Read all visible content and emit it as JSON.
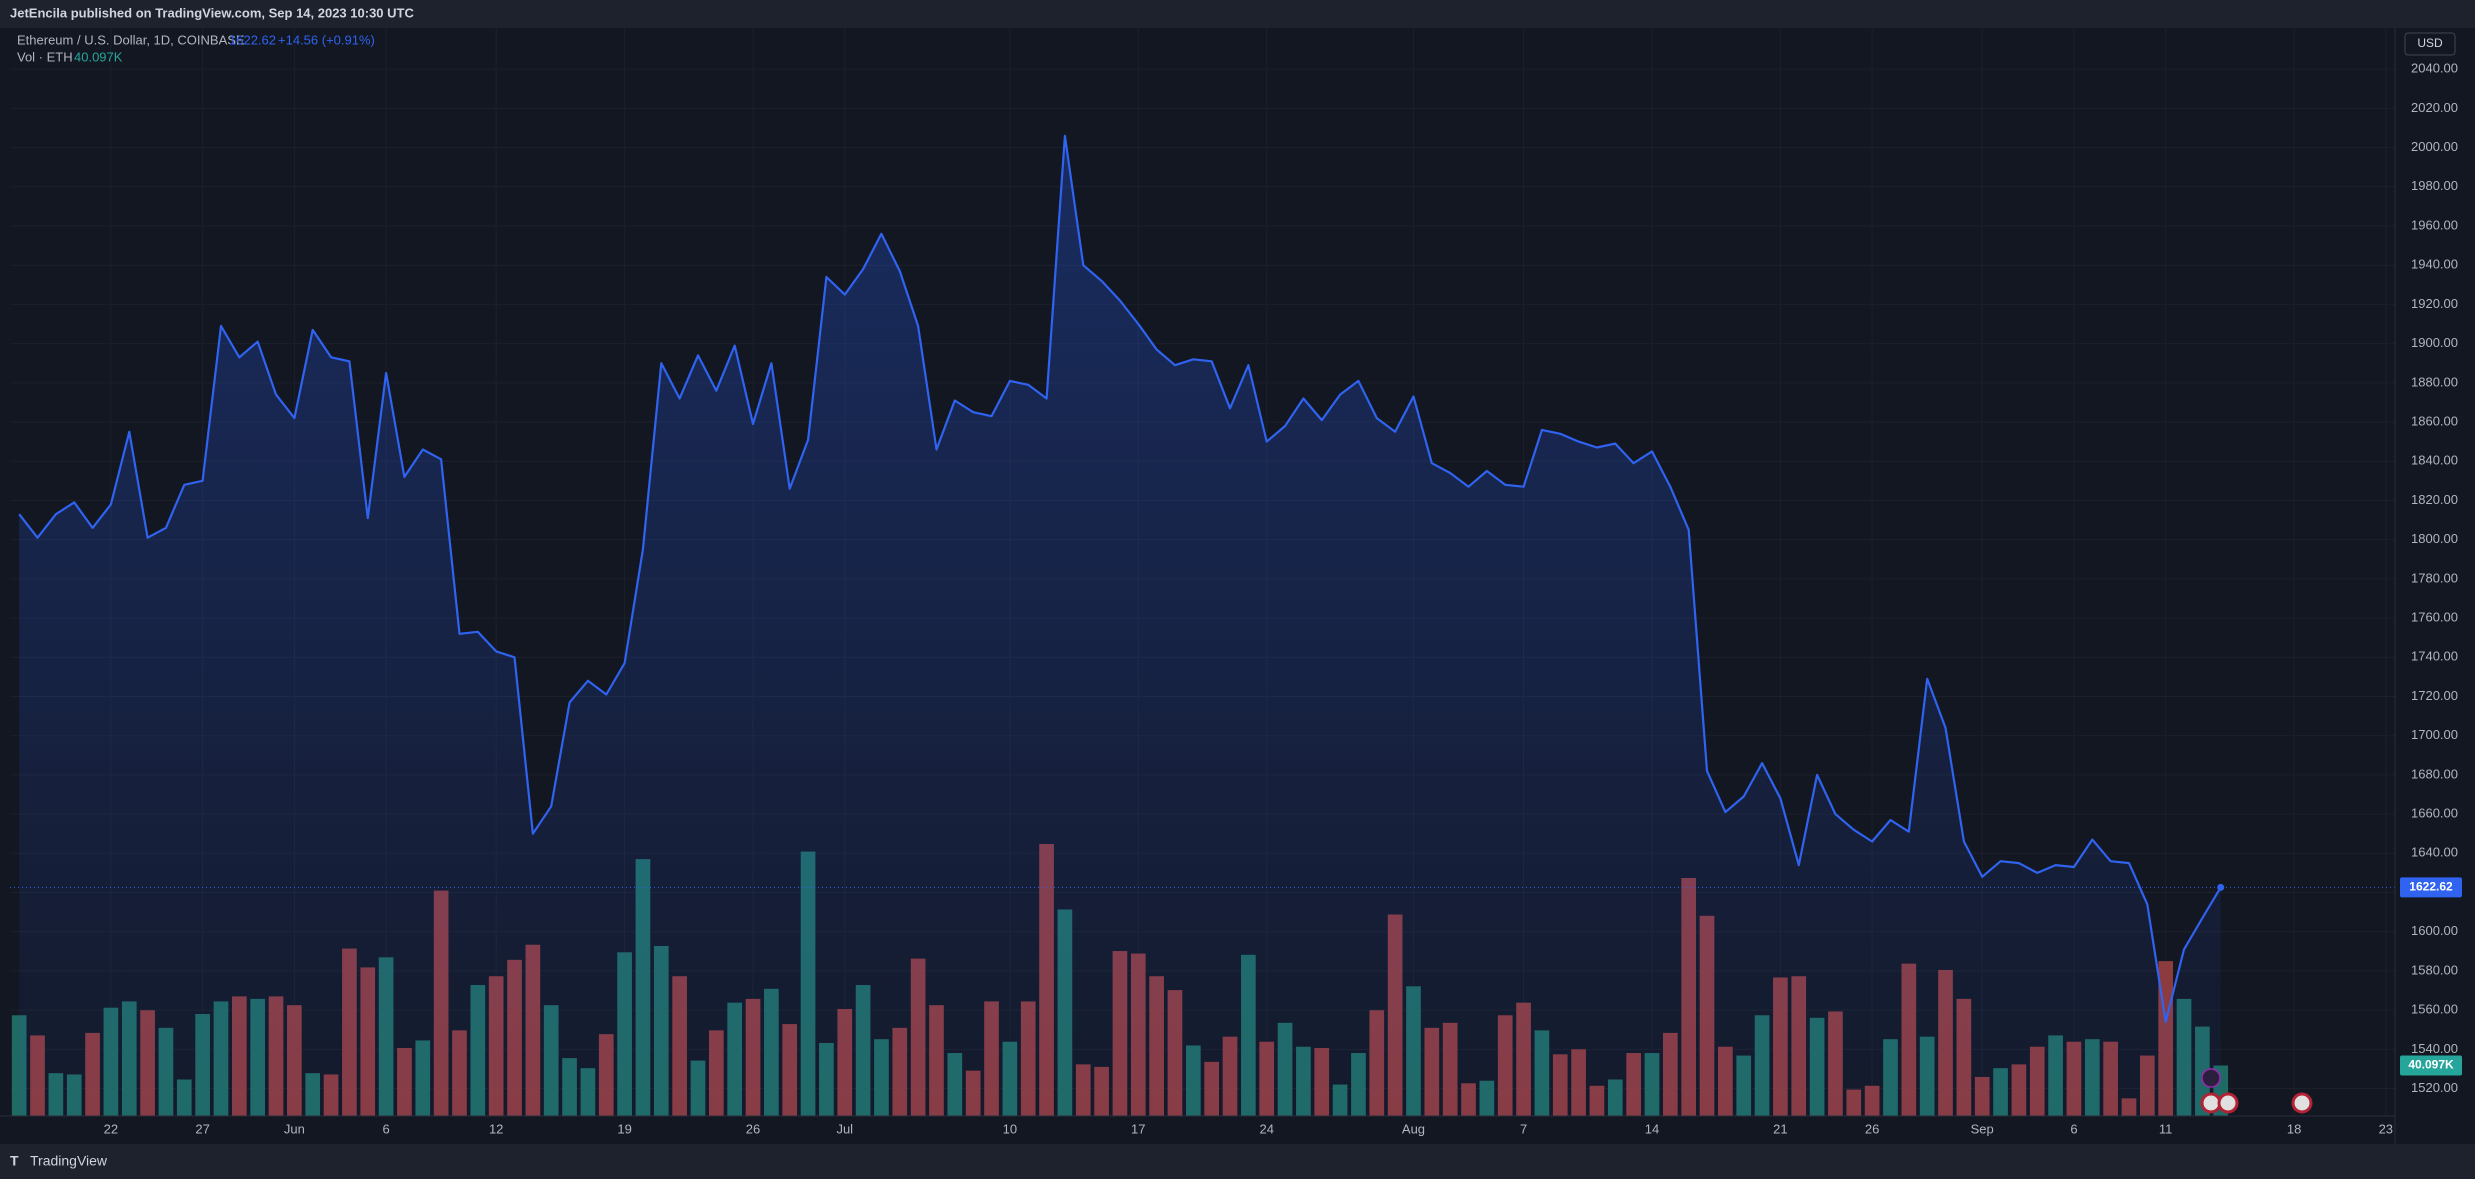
{
  "header": {
    "publisher": "JetEncila published on TradingView.com, Sep 14, 2023 10:30 UTC",
    "brand": "TradingView"
  },
  "chart_data": {
    "type": "area",
    "symbol": "Ethereum / U.S. Dollar, 1D, COINBASE",
    "change_label": "+14.56 (+0.91%)",
    "currency": "USD",
    "grid": true,
    "categories": [
      null,
      null,
      null,
      null,
      null,
      "22",
      null,
      null,
      null,
      null,
      "27",
      null,
      null,
      null,
      null,
      "Jun",
      null,
      null,
      null,
      null,
      "6",
      null,
      null,
      null,
      null,
      null,
      "12",
      null,
      null,
      null,
      null,
      null,
      null,
      "19",
      null,
      null,
      null,
      null,
      null,
      null,
      "26",
      null,
      null,
      null,
      null,
      "Jul",
      null,
      null,
      null,
      null,
      null,
      null,
      null,
      null,
      "10",
      null,
      null,
      null,
      null,
      null,
      null,
      "17",
      null,
      null,
      null,
      null,
      null,
      null,
      "24",
      null,
      null,
      null,
      null,
      null,
      null,
      null,
      "Aug",
      null,
      null,
      null,
      null,
      null,
      "7",
      null,
      null,
      null,
      null,
      null,
      null,
      "14",
      null,
      null,
      null,
      null,
      null,
      null,
      "21",
      null,
      null,
      null,
      null,
      "26",
      null,
      null,
      null,
      null,
      null,
      "Sep",
      null,
      null,
      null,
      null,
      "6",
      null,
      null,
      null,
      null,
      "11",
      null,
      null,
      null,
      null,
      null,
      null,
      "18",
      null,
      null,
      null,
      null,
      "23"
    ],
    "series": [
      {
        "name": "Ethereum / U.S. Dollar, 1D, COINBASE",
        "color": "#2f63f0",
        "values": [
          1813,
          1801,
          1813,
          1819,
          1806,
          1818,
          1855,
          1801,
          1806,
          1828,
          1830,
          1909,
          1893,
          1901,
          1874,
          1862,
          1907,
          1893,
          1891,
          1811,
          1885,
          1832,
          1846,
          1841,
          1752,
          1753,
          1743,
          1740,
          1650,
          1664,
          1717,
          1728,
          1721,
          1737,
          1795,
          1890,
          1872,
          1894,
          1876,
          1899,
          1859,
          1890,
          1826,
          1851,
          1934,
          1925,
          1938,
          1956,
          1937,
          1909,
          1846,
          1871,
          1865,
          1863,
          1881,
          1879,
          1872,
          2006,
          1940,
          1932,
          1922,
          1910,
          1897,
          1889,
          1892,
          1891,
          1867,
          1889,
          1850,
          1858,
          1872,
          1861,
          1874,
          1881,
          1862,
          1855,
          1873,
          1839,
          1834,
          1827,
          1835,
          1828,
          1827,
          1856,
          1854,
          1850,
          1847,
          1849,
          1839,
          1845,
          1827,
          1805,
          1682,
          1661,
          1669,
          1686,
          1668,
          1634,
          1680,
          1660,
          1652,
          1646,
          1657,
          1651,
          1729,
          1704,
          1646,
          1628,
          1636,
          1635,
          1630,
          1634,
          1633,
          1647,
          1636,
          1635,
          1614,
          1554,
          1591,
          1607,
          1622.62,
          null,
          null,
          null,
          null,
          null,
          null,
          null,
          null,
          null
        ]
      },
      {
        "name": "Vol · ETH",
        "up_color": "#1f6b63",
        "down_color": "#8c3b3e",
        "label_color": "#26a69a",
        "values": [
          80,
          64,
          34,
          33,
          66,
          86,
          91,
          84,
          70,
          29,
          81,
          91,
          95,
          93,
          95,
          88,
          34,
          33,
          133,
          118,
          126,
          54,
          60,
          179,
          68,
          104,
          111,
          124,
          136,
          88,
          46,
          38,
          65,
          130,
          204,
          135,
          111,
          44,
          68,
          90,
          93,
          101,
          73,
          210,
          58,
          85,
          104,
          61,
          70,
          125,
          88,
          50,
          36,
          91,
          59,
          91,
          216,
          164,
          41,
          39,
          131,
          129,
          111,
          100,
          56,
          43,
          63,
          128,
          59,
          74,
          55,
          54,
          25,
          50,
          84,
          160,
          103,
          70,
          74,
          26,
          28,
          80,
          90,
          68,
          49,
          53,
          24,
          29,
          50,
          50,
          66,
          189,
          159,
          55,
          48,
          80,
          110,
          111,
          78,
          83,
          21,
          24,
          61,
          121,
          63,
          116,
          93,
          31,
          38,
          41,
          55,
          64,
          59,
          61,
          59,
          14,
          48,
          123,
          93,
          71,
          40.097,
          null,
          null,
          null,
          null,
          null,
          null,
          null,
          null,
          null
        ],
        "value_labels": [
          null,
          null,
          null,
          null,
          null,
          null,
          null,
          null,
          null,
          null,
          null,
          null,
          null,
          null,
          null,
          null,
          null,
          null,
          null,
          null,
          null,
          null,
          null,
          null,
          null,
          null,
          null,
          null,
          null,
          null,
          null,
          null,
          null,
          null,
          null,
          null,
          null,
          null,
          null,
          null,
          null,
          null,
          null,
          null,
          null,
          null,
          null,
          null,
          null,
          null,
          null,
          null,
          null,
          null,
          null,
          null,
          null,
          null,
          null,
          null,
          null,
          null,
          null,
          null,
          null,
          null,
          null,
          null,
          null,
          null,
          null,
          null,
          null,
          null,
          null,
          null,
          null,
          null,
          null,
          null,
          null,
          null,
          null,
          null,
          null,
          null,
          null,
          null,
          null,
          null,
          null,
          null,
          null,
          null,
          null,
          null,
          null,
          null,
          null,
          null,
          null,
          null,
          null,
          null,
          null,
          null,
          null,
          null,
          null,
          null,
          null,
          null,
          null,
          null,
          null,
          null,
          null,
          null,
          null,
          null,
          "40.097K",
          null,
          null,
          null,
          null,
          null,
          null,
          null,
          null,
          null
        ]
      }
    ],
    "ylim": [
      1506,
      2061
    ],
    "yticks": [
      {
        "value": 1520,
        "label": "1520.00"
      },
      {
        "value": 1540,
        "label": "1540.00"
      },
      {
        "value": 1560,
        "label": "1560.00"
      },
      {
        "value": 1580,
        "label": "1580.00"
      },
      {
        "value": 1600,
        "label": "1600.00"
      },
      {
        "value": 1620,
        "label": "1620.00"
      },
      {
        "value": 1640,
        "label": "1640.00"
      },
      {
        "value": 1660,
        "label": "1660.00"
      },
      {
        "value": 1680,
        "label": "1680.00"
      },
      {
        "value": 1700,
        "label": "1700.00"
      },
      {
        "value": 1720,
        "label": "1720.00"
      },
      {
        "value": 1740,
        "label": "1740.00"
      },
      {
        "value": 1760,
        "label": "1760.00"
      },
      {
        "value": 1780,
        "label": "1780.00"
      },
      {
        "value": 1800,
        "label": "1800.00"
      },
      {
        "value": 1820,
        "label": "1820.00"
      },
      {
        "value": 1840,
        "label": "1840.00"
      },
      {
        "value": 1860,
        "label": "1860.00"
      },
      {
        "value": 1880,
        "label": "1880.00"
      },
      {
        "value": 1900,
        "label": "1900.00"
      },
      {
        "value": 1920,
        "label": "1920.00"
      },
      {
        "value": 1940,
        "label": "1940.00"
      },
      {
        "value": 1960,
        "label": "1960.00"
      },
      {
        "value": 1980,
        "label": "1980.00"
      },
      {
        "value": 2000,
        "label": "2000.00"
      },
      {
        "value": 2020,
        "label": "2020.00"
      },
      {
        "value": 2040,
        "label": "2040.00"
      }
    ]
  }
}
